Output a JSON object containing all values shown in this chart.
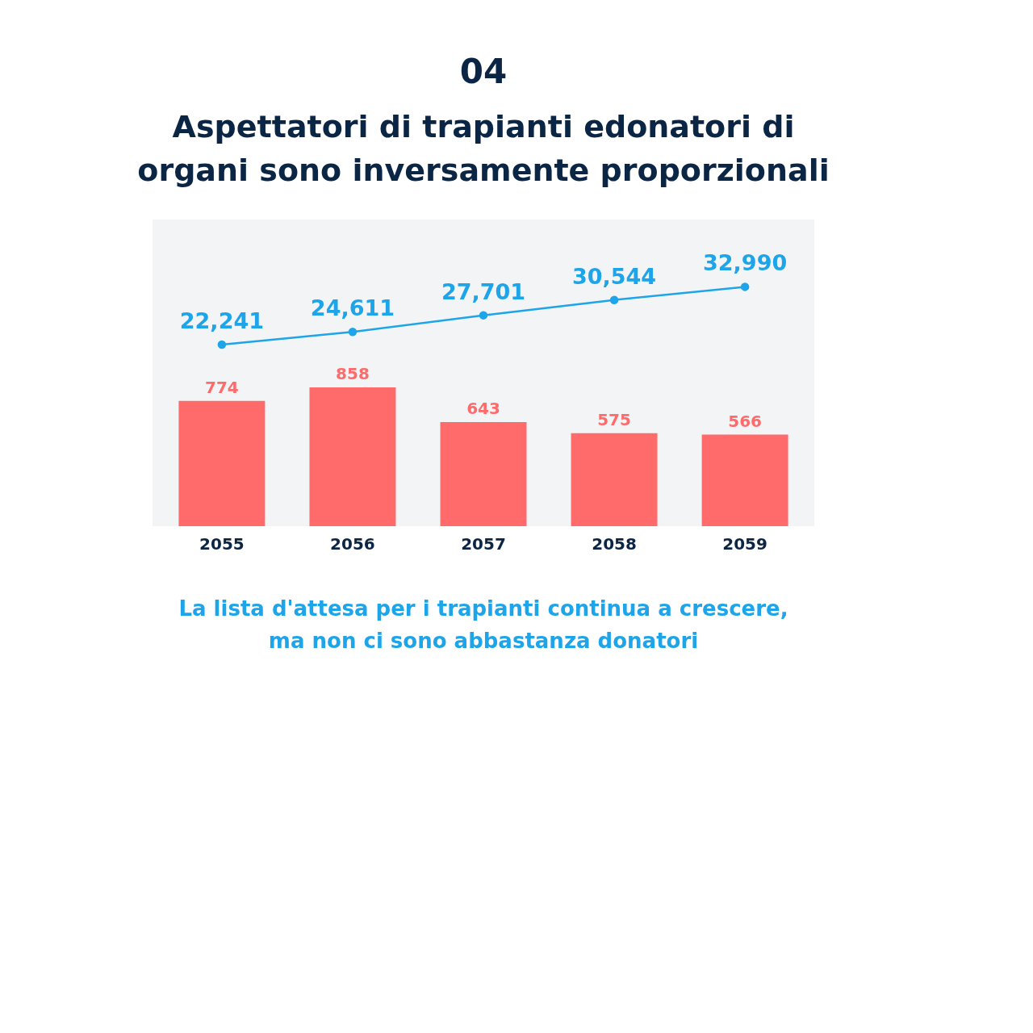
{
  "chart_data": {
    "type": "bar",
    "title": "Aspettatori di trapianti edonatori di organi sono inversamente proporzionali",
    "categories": [
      "2055",
      "2056",
      "2057",
      "2058",
      "2059"
    ],
    "series": [
      {
        "color": "#ff6b6b",
        "values": [
          774,
          858,
          643,
          575,
          566
        ]
      },
      {
        "type": "line",
        "axis": "y2",
        "color": "#1ea5e9",
        "values": [
          22241,
          24611,
          27701,
          30544,
          32990
        ],
        "value_labels": [
          "22,241",
          "24,611",
          "27,701",
          "30,544",
          "32,990"
        ]
      }
    ],
    "ylim": [
      0,
      1895
    ],
    "y2lim": [
      -11500,
      45500
    ],
    "marker": "circle",
    "data_labels": true,
    "annotations": [
      "04",
      "La lista d'attesa per i trapianti continua a crescere, ma non ci sono abbastanza donatori"
    ]
  }
}
